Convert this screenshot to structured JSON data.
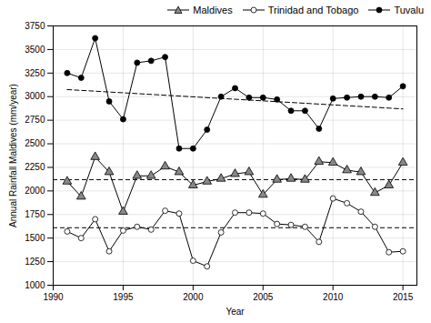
{
  "chart_data": {
    "type": "line",
    "xlabel": "Year",
    "ylabel": "Annual Rainfall Maldives (mm/year)",
    "x": [
      1991,
      1992,
      1993,
      1994,
      1995,
      1996,
      1997,
      1998,
      1999,
      2000,
      2001,
      2002,
      2003,
      2004,
      2005,
      2006,
      2007,
      2008,
      2009,
      2010,
      2011,
      2012,
      2013,
      2014,
      2015
    ],
    "series": [
      {
        "name": "Maldives",
        "color": "#888888",
        "marker": "triangle",
        "values": [
          2100,
          1940,
          2360,
          2200,
          1780,
          2160,
          2160,
          2260,
          2200,
          2060,
          2100,
          2130,
          2180,
          2200,
          1960,
          2120,
          2130,
          2120,
          2310,
          2300,
          2220,
          2200,
          1980,
          2060,
          2300
        ]
      },
      {
        "name": "Trinidad and Tobago",
        "color": "white",
        "marker": "circle",
        "values": [
          1570,
          1500,
          1700,
          1360,
          1580,
          1620,
          1590,
          1790,
          1760,
          1260,
          1200,
          1560,
          1770,
          1770,
          1760,
          1650,
          1640,
          1620,
          1460,
          1920,
          1870,
          1780,
          1620,
          1350,
          1360
        ]
      },
      {
        "name": "Tuvalu",
        "color": "black",
        "marker": "circle",
        "values": [
          3250,
          3200,
          3620,
          2950,
          2760,
          3360,
          3380,
          3420,
          2450,
          2450,
          2650,
          3000,
          3090,
          2990,
          2990,
          2970,
          2850,
          2850,
          2660,
          2980,
          2990,
          3000,
          3000,
          2990,
          3110
        ]
      }
    ],
    "trend_lines": [
      {
        "x": [
          1991,
          2015
        ],
        "values": [
          3075,
          2870
        ],
        "line_style": "dashed"
      },
      {
        "value": 2120,
        "line_style": "dashed"
      },
      {
        "value": 1610,
        "line_style": "dashed"
      }
    ],
    "xlim": [
      1990,
      2016
    ],
    "ylim": [
      1000,
      3750
    ],
    "xticks": [
      1990,
      1995,
      2000,
      2005,
      2010,
      2015
    ],
    "yticks": [
      1000,
      1250,
      1500,
      1750,
      2000,
      2250,
      2500,
      2750,
      3000,
      3250,
      3500,
      3750
    ],
    "grid": true,
    "legend": "upper right"
  }
}
